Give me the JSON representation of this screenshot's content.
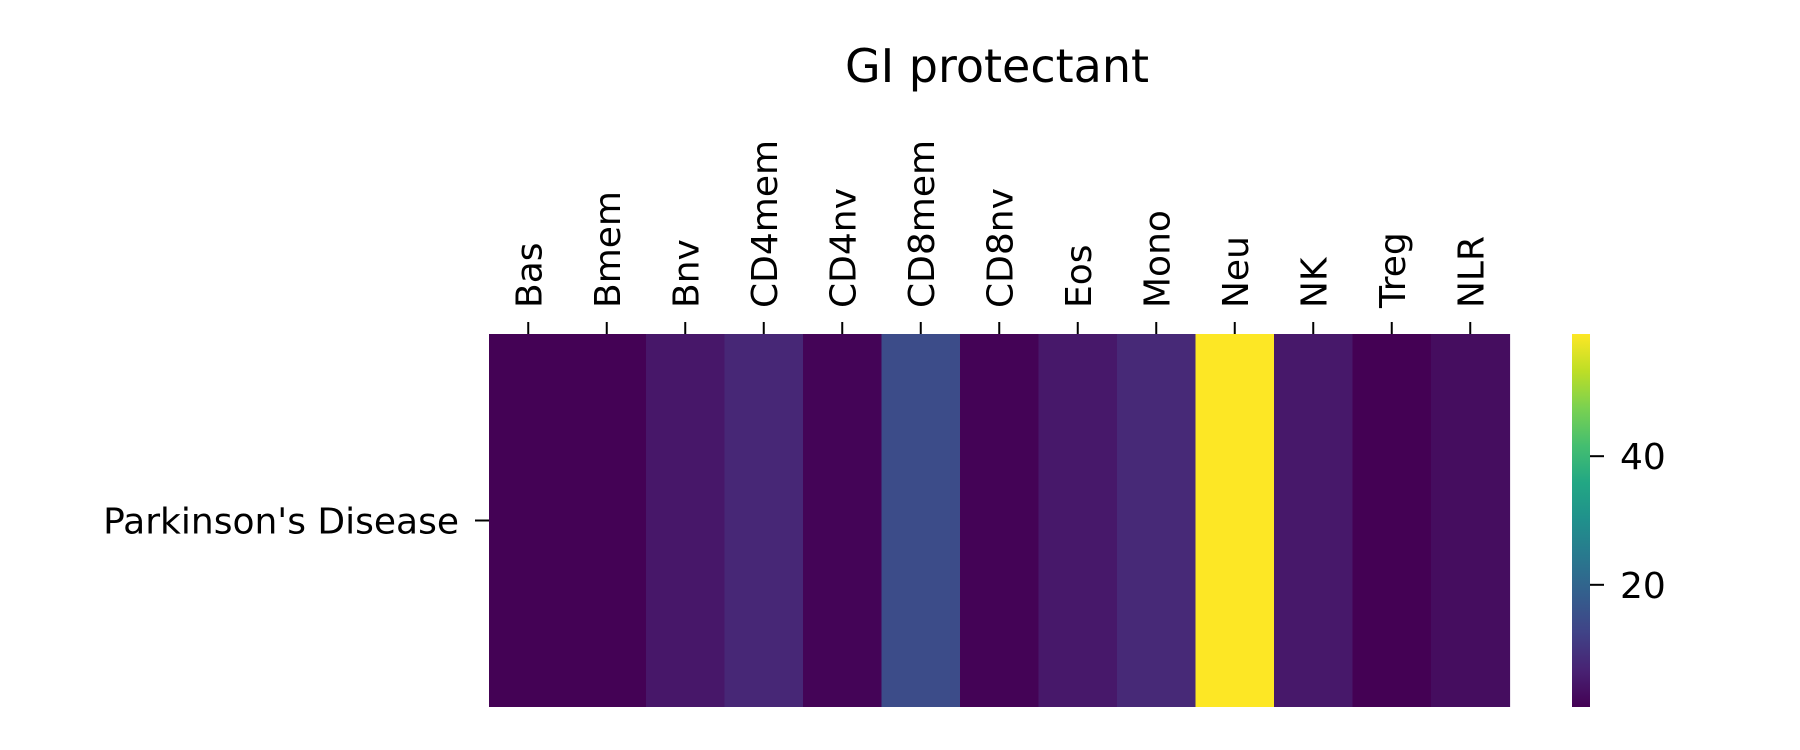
{
  "chart_data": {
    "type": "heatmap",
    "title": "GI protectant",
    "rows": [
      "Parkinson's Disease"
    ],
    "columns": [
      "Bas",
      "Bmem",
      "Bnv",
      "CD4mem",
      "CD4nv",
      "CD8mem",
      "CD8nv",
      "Eos",
      "Mono",
      "Neu",
      "NK",
      "Treg",
      "NLR"
    ],
    "values": [
      [
        1.2,
        1.1,
        4.8,
        7.5,
        1.5,
        14.5,
        1.3,
        5.0,
        7.8,
        59.0,
        4.9,
        1.0,
        3.0
      ]
    ],
    "colormap": "viridis",
    "colorbar": {
      "min": 1.0,
      "max": 59.0,
      "ticks": [
        20,
        40
      ],
      "tick_labels": [
        "20",
        "40"
      ]
    },
    "grid": false,
    "x_tick_position": "top",
    "x_tick_rotation": 90
  }
}
